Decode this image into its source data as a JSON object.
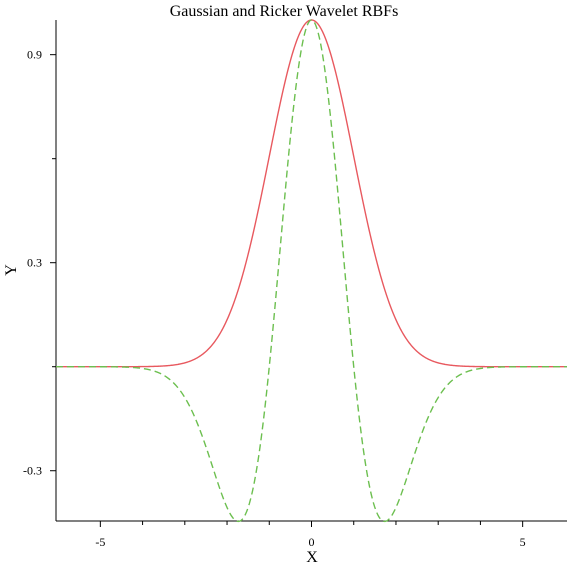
{
  "chart_data": {
    "type": "line",
    "title": "Gaussian and Ricker Wavelet RBFs",
    "xlabel": "X",
    "ylabel": "Y",
    "xlim": [
      -6.05,
      6.05
    ],
    "ylim": [
      -0.445,
      1.0
    ],
    "x_ticks": [
      -5,
      0,
      5
    ],
    "x_tick_labels": [
      "-5",
      "0",
      "5"
    ],
    "x_minor_ticks": [
      -4,
      -3,
      -2,
      -1,
      1,
      2,
      3,
      4
    ],
    "y_ticks": [
      0.9,
      0.3,
      -0.3
    ],
    "y_tick_labels": [
      "0.9",
      "0.3",
      "-0.3"
    ],
    "y_minor_ticks": [
      0.6,
      0.0
    ],
    "grid": false,
    "legend": "none",
    "series": [
      {
        "style": "solid",
        "color": "#e8595f",
        "formula": "exp(-x^2/2)",
        "x": [
          -6,
          -4,
          -3,
          -2.5,
          -2,
          -1.5,
          -1,
          -0.5,
          0,
          0.5,
          1,
          1.5,
          2,
          2.5,
          3,
          4,
          6
        ],
        "values": [
          0.0,
          0.0003,
          0.011,
          0.044,
          0.135,
          0.325,
          0.607,
          0.882,
          1.0,
          0.882,
          0.607,
          0.325,
          0.135,
          0.044,
          0.011,
          0.0003,
          0.0
        ]
      },
      {
        "style": "dashed",
        "color": "#6cbf4f",
        "formula": "(1-x^2)*exp(-x^2/2)",
        "x": [
          -6,
          -4,
          -3,
          -2.5,
          -2,
          -1.73,
          -1.5,
          -1,
          -0.5,
          0,
          0.5,
          1,
          1.5,
          1.73,
          2,
          2.5,
          3,
          4,
          6
        ],
        "values": [
          0.0,
          -0.005,
          -0.089,
          -0.231,
          -0.406,
          -0.446,
          -0.406,
          0.0,
          0.662,
          1.0,
          0.662,
          0.0,
          -0.406,
          -0.446,
          -0.406,
          -0.231,
          -0.089,
          -0.005,
          0.0
        ]
      }
    ]
  }
}
